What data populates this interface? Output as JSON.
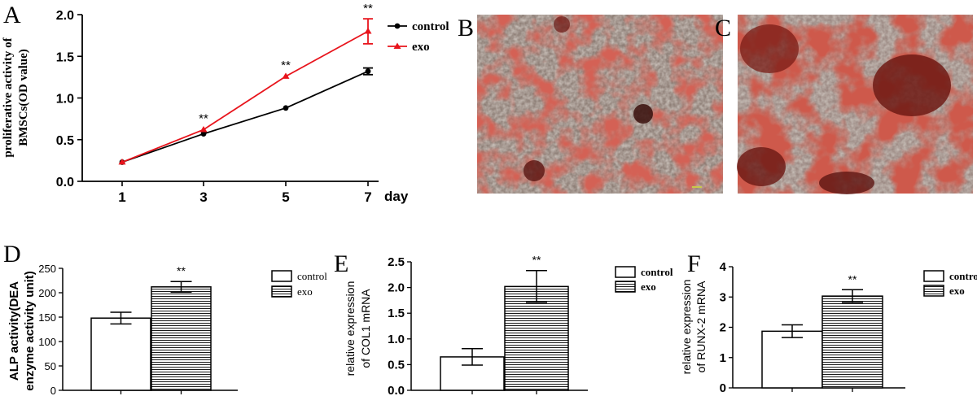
{
  "chart_data": [
    {
      "panel": "A",
      "type": "line",
      "xlabel": "day",
      "ylabel_lines": [
        "proliferative activity of",
        "BMSCs(OD value)"
      ],
      "x": [
        1,
        3,
        5,
        7
      ],
      "xticks": [
        "1",
        "3",
        "5",
        "7"
      ],
      "yticks": [
        "0.0",
        "0.5",
        "1.0",
        "1.5",
        "2.0"
      ],
      "ylim": [
        0,
        2.0
      ],
      "series": [
        {
          "name": "control",
          "values": [
            0.23,
            0.57,
            0.88,
            1.32
          ],
          "err": [
            0.01,
            0.01,
            0.01,
            0.04
          ],
          "color": "#000000",
          "marker": "circle"
        },
        {
          "name": "exo",
          "values": [
            0.23,
            0.62,
            1.26,
            1.8
          ],
          "err": [
            0.01,
            0.01,
            0.01,
            0.15
          ],
          "color": "#e8141c",
          "marker": "triangle"
        }
      ],
      "significance": [
        "",
        "**",
        "**",
        "**"
      ],
      "legend_position": "top-right"
    },
    {
      "panel": "D",
      "type": "bar",
      "ylabel_lines": [
        "ALP activity(DEA",
        "enzyme activity unit)"
      ],
      "categories": [
        "control",
        "exo"
      ],
      "values": [
        148,
        212
      ],
      "err": [
        12,
        11
      ],
      "yticks": [
        "0",
        "50",
        "100",
        "150",
        "200",
        "250"
      ],
      "ylim": [
        0,
        250
      ],
      "significance": "**",
      "legend": [
        "control",
        "exo"
      ]
    },
    {
      "panel": "E",
      "type": "bar",
      "ylabel_lines": [
        "relative expression",
        "of COL1 mRNA"
      ],
      "categories": [
        "control",
        "exo"
      ],
      "values": [
        0.65,
        2.02
      ],
      "err": [
        0.16,
        0.31
      ],
      "yticks": [
        "0.0",
        "0.5",
        "1.0",
        "1.5",
        "2.0",
        "2.5"
      ],
      "ylim": [
        0,
        2.5
      ],
      "significance": "**",
      "legend": [
        "control",
        "exo"
      ]
    },
    {
      "panel": "F",
      "type": "bar",
      "ylabel_lines": [
        "relative expression",
        "of RUNX-2 mRNA"
      ],
      "categories": [
        "control",
        "exo"
      ],
      "values": [
        1.87,
        3.03
      ],
      "err": [
        0.21,
        0.21
      ],
      "yticks": [
        "0",
        "1",
        "2",
        "3",
        "4"
      ],
      "ylim": [
        0,
        4
      ],
      "significance": "**",
      "legend": [
        "control",
        "exo"
      ]
    }
  ],
  "images": [
    {
      "panel": "B",
      "kind": "alizarin-red-stained-cells"
    },
    {
      "panel": "C",
      "kind": "alizarin-red-stained-cells"
    }
  ],
  "panel_labels": {
    "A": "A",
    "B": "B",
    "C": "C",
    "D": "D",
    "E": "E",
    "F": "F"
  },
  "colors": {
    "axis": "#000000",
    "control": "#000000",
    "exo": "#e8141c",
    "stain_red": "#a81e18",
    "cells": "#8c7c72"
  }
}
